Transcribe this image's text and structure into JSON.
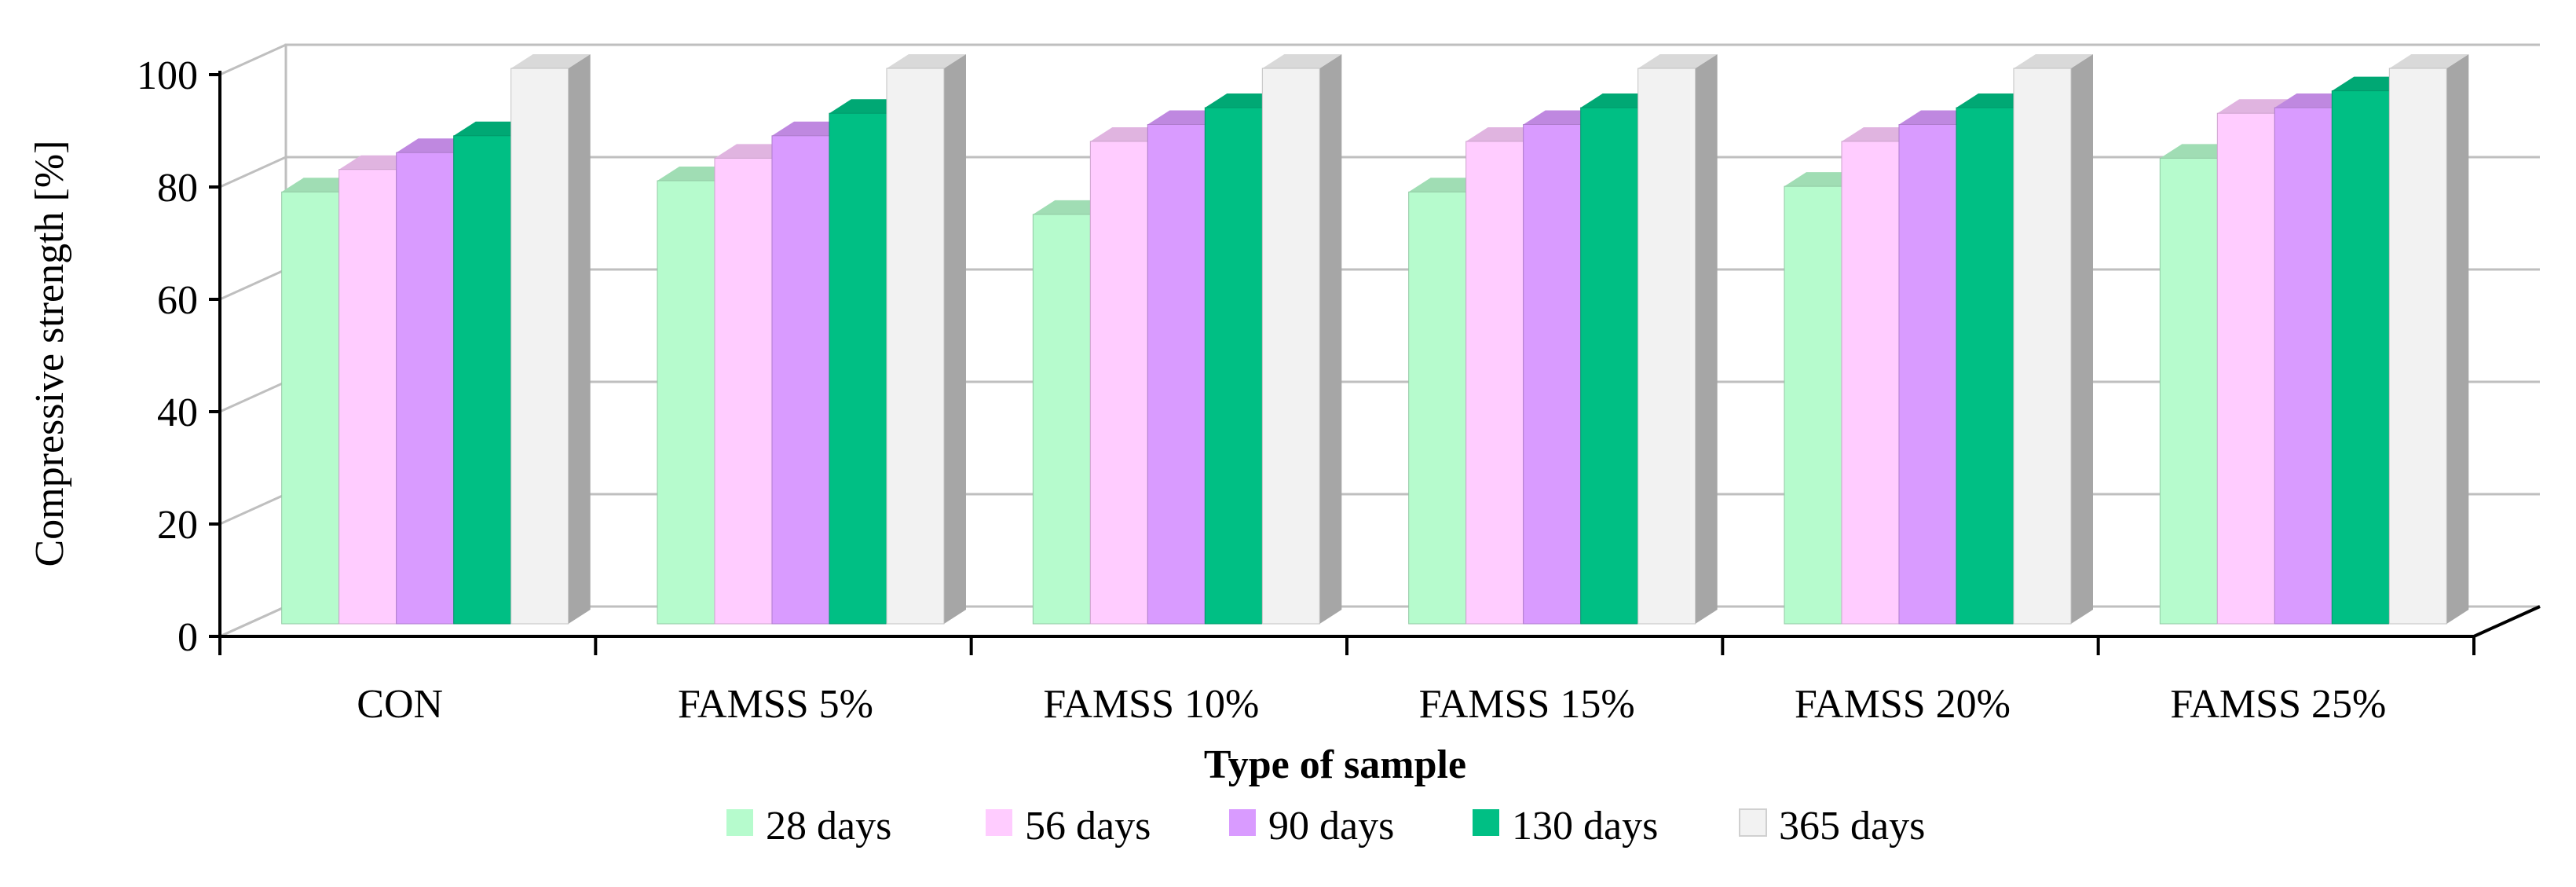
{
  "chart_data": {
    "type": "bar",
    "title": "",
    "xlabel": "Type of sample",
    "ylabel": "Compressive strength [%]",
    "ylim": [
      0,
      100
    ],
    "yticks": [
      "0",
      "20",
      "40",
      "60",
      "80",
      "100"
    ],
    "categories": [
      "CON",
      "FAMSS 5%",
      "FAMSS 10%",
      "FAMSS 15%",
      "FAMSS 20%",
      "FAMSS 25%"
    ],
    "series": [
      {
        "name": "28 days",
        "values": [
          78,
          80,
          74,
          78,
          79,
          84
        ]
      },
      {
        "name": "56 days",
        "values": [
          82,
          84,
          87,
          87,
          87,
          92
        ]
      },
      {
        "name": "90 days",
        "values": [
          85,
          88,
          90,
          90,
          90,
          93
        ]
      },
      {
        "name": "130 days",
        "values": [
          88,
          92,
          93,
          93,
          93,
          96
        ]
      },
      {
        "name": "365 days",
        "values": [
          100,
          100,
          100,
          100,
          100,
          100
        ]
      }
    ],
    "grid": true,
    "legend_position": "bottom",
    "colors": [
      "#b6fbcd",
      "#ffccff",
      "#d99bff",
      "#00bf84",
      "#f2f2f2"
    ]
  }
}
